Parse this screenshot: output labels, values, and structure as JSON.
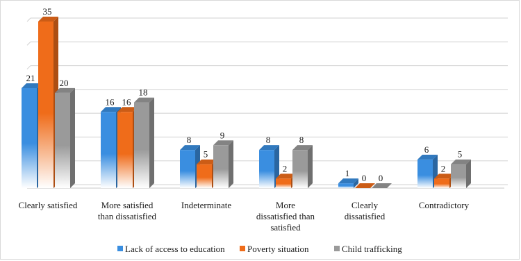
{
  "chart_data": {
    "type": "bar",
    "style": "3d-clustered-column",
    "categories": [
      [
        "Clearly satisfied"
      ],
      [
        "More satisfied",
        "than dissatisfied"
      ],
      [
        "Indeterminate"
      ],
      [
        "More",
        "dissatisfied than",
        "satisfied"
      ],
      [
        "Clearly",
        "dissatisfied"
      ],
      [
        "Contradictory"
      ]
    ],
    "series": [
      {
        "name": "Lack of access to education",
        "color": "#3a8ee0",
        "values": [
          21,
          16,
          8,
          8,
          1,
          6
        ]
      },
      {
        "name": "Poverty situation",
        "color": "#ef6c1a",
        "values": [
          35,
          16,
          5,
          2,
          0,
          2
        ]
      },
      {
        "name": "Child trafficking",
        "color": "#9a9a9a",
        "values": [
          20,
          18,
          9,
          8,
          0,
          5
        ]
      }
    ],
    "ylim": [
      0,
      35
    ],
    "grid": true,
    "legend_position": "bottom"
  }
}
